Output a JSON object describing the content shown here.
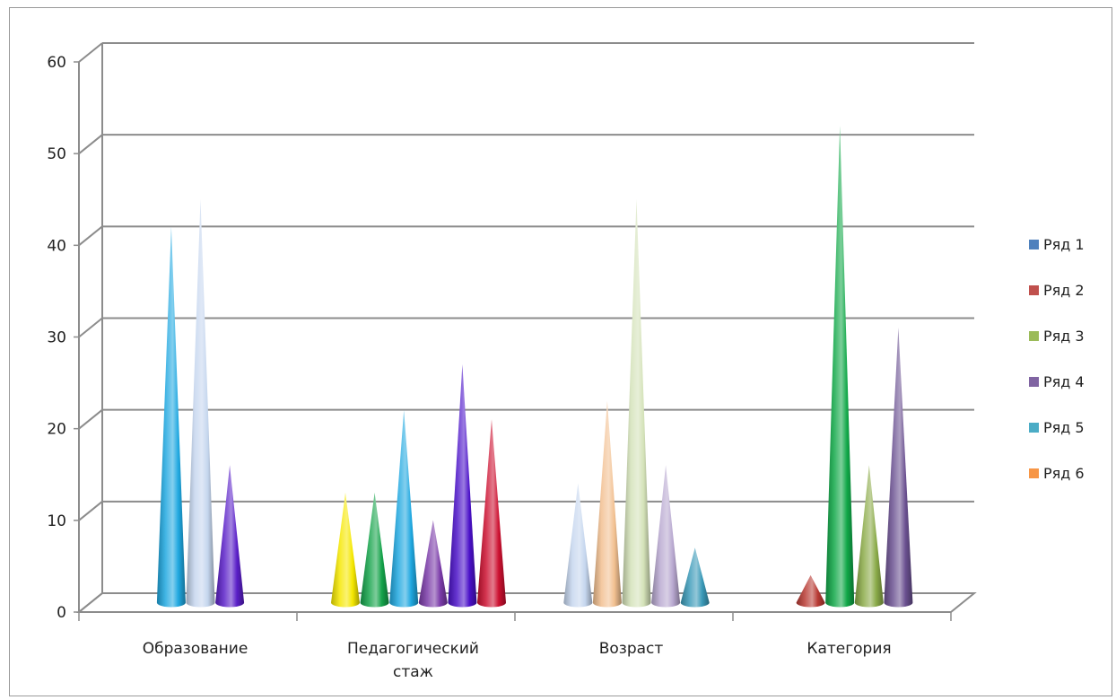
{
  "chart_data": {
    "type": "bar",
    "style": "3d-cone",
    "categories": [
      [
        "Образование"
      ],
      [
        "Педагогический",
        "стаж"
      ],
      [
        "Возраст"
      ],
      [
        "Категория"
      ]
    ],
    "ylim": [
      0,
      60
    ],
    "yticks": [
      0,
      10,
      20,
      30,
      40,
      50,
      60
    ],
    "grid": true,
    "legend": {
      "position": "right",
      "entries": [
        {
          "name": "Ряд 1",
          "color": "#4f81bd"
        },
        {
          "name": "Ряд 2",
          "color": "#c0504d"
        },
        {
          "name": "Ряд 3",
          "color": "#9bbb59"
        },
        {
          "name": "Ряд 4",
          "color": "#8064a2"
        },
        {
          "name": "Ряд 5",
          "color": "#4bacc6"
        },
        {
          "name": "Ряд 6",
          "color": "#f79646"
        }
      ]
    },
    "groups": [
      {
        "category": "Образование",
        "cones": [
          {
            "value": 41,
            "color": "#1fa8e0"
          },
          {
            "value": 44,
            "color": "#c5d6ee"
          },
          {
            "value": 15,
            "color": "#5a1fc8"
          }
        ]
      },
      {
        "category": "Педагогический стаж",
        "cones": [
          {
            "value": 12,
            "color": "#f5e800"
          },
          {
            "value": 12,
            "color": "#14a34a"
          },
          {
            "value": 21,
            "color": "#1fa8e0"
          },
          {
            "value": 9,
            "color": "#7a3aa8"
          },
          {
            "value": 26,
            "color": "#4a10c8"
          },
          {
            "value": 20,
            "color": "#cc1030"
          }
        ]
      },
      {
        "category": "Возраст",
        "cones": [
          {
            "value": 13,
            "color": "#c5d6ee"
          },
          {
            "value": 22,
            "color": "#f2c090"
          },
          {
            "value": 44,
            "color": "#d4e2b8"
          },
          {
            "value": 15,
            "color": "#b8a8d0"
          },
          {
            "value": 6,
            "color": "#3a9ab8"
          }
        ]
      },
      {
        "category": "Категория",
        "cones": [
          {
            "value": 3,
            "color": "#b83a34"
          },
          {
            "value": 52,
            "color": "#10a848"
          },
          {
            "value": 15,
            "color": "#8aaa48"
          },
          {
            "value": 30,
            "color": "#6a5090"
          }
        ]
      }
    ]
  }
}
